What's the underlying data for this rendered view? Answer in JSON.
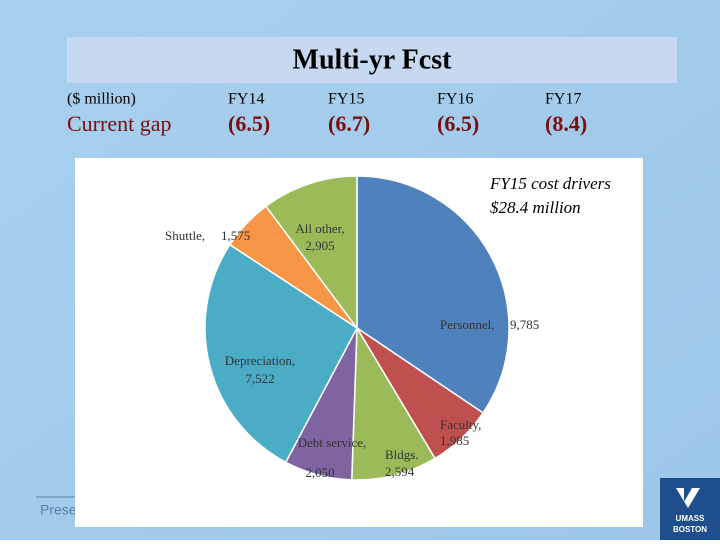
{
  "header": {
    "title": "Multi-yr Fcst"
  },
  "table": {
    "header": [
      "($ million)",
      "FY14",
      "FY15",
      "FY16",
      "FY17"
    ],
    "rows": [
      [
        "Current gap",
        "(6.5)",
        "(6.7)",
        "(6.5)",
        "(8.4)"
      ]
    ]
  },
  "footer": {
    "text": "Prese"
  },
  "logo": {
    "line1": "UMASS",
    "line2": "BOSTON"
  },
  "chart_data": {
    "type": "pie",
    "title": "FY15 cost drivers",
    "subtitle": "$28.4 million",
    "categories": [
      "Personnel,",
      "Faculty,",
      "Bldgs.",
      "Debt service,",
      "Depreciation,",
      "Shuttle,",
      "All other,"
    ],
    "values": [
      9785,
      1985,
      2594,
      2050,
      7522,
      1575,
      2905
    ],
    "value_labels": [
      "9,785",
      "1,985",
      "2,594",
      "2,050",
      "7,522",
      "1,575",
      "2,905"
    ],
    "colors": [
      "#4f81bd",
      "#c0504d",
      "#9bbb59",
      "#8064a2",
      "#4bacc6",
      "#f79646",
      "#9bbb59"
    ]
  }
}
